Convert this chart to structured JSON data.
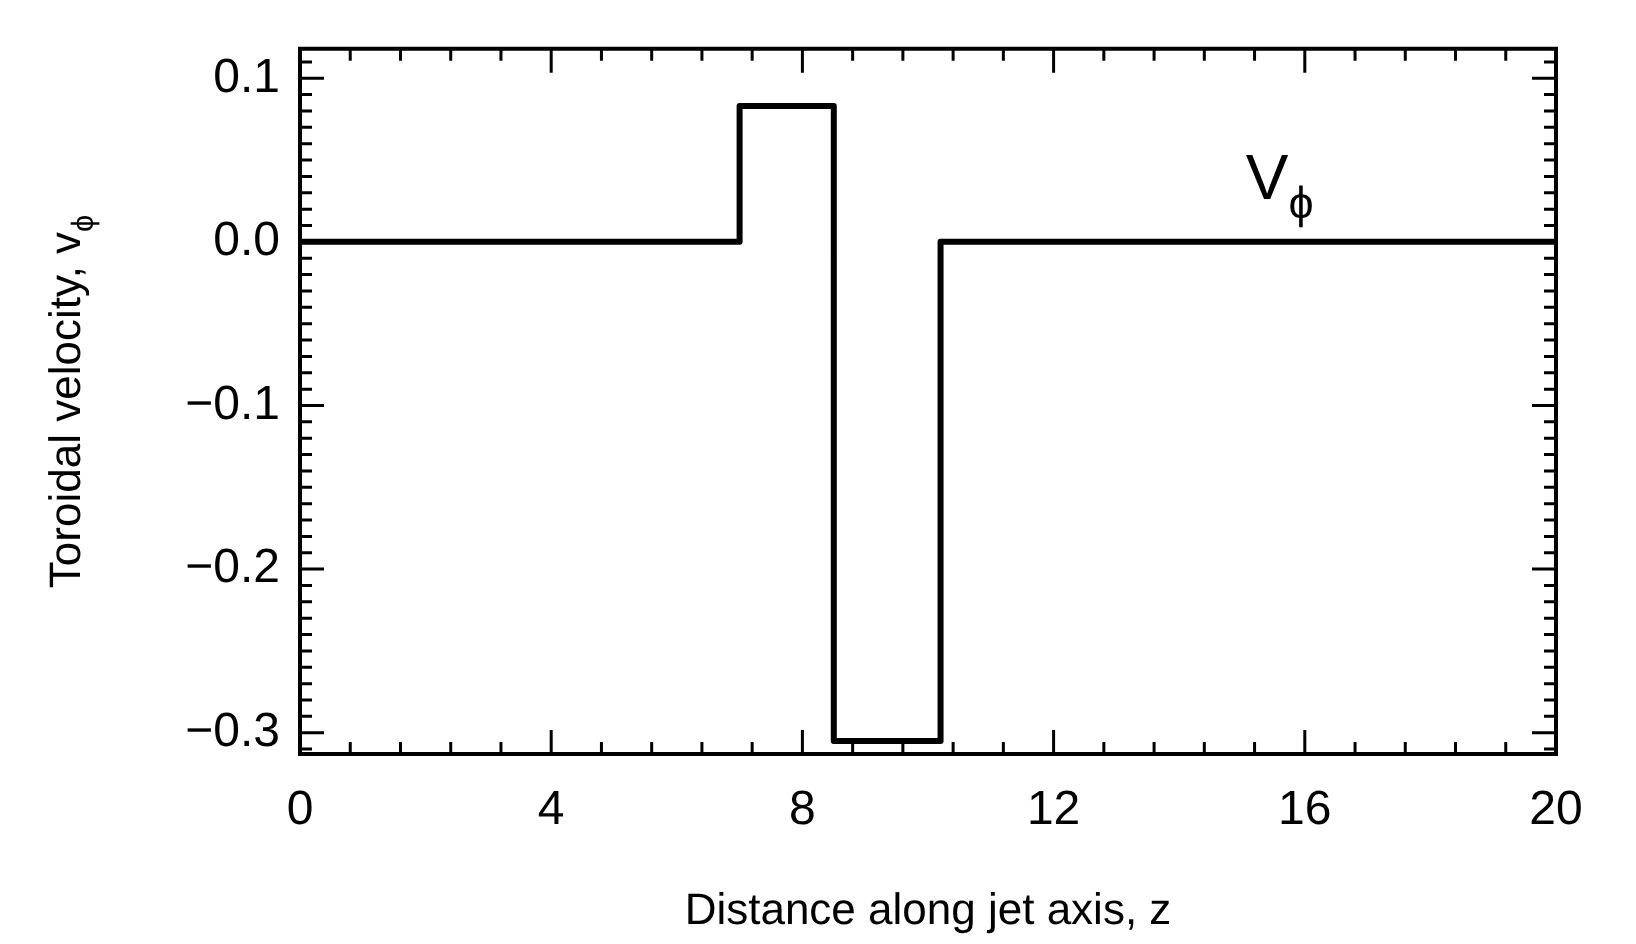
{
  "chart_data": {
    "type": "step",
    "xlabel": "Distance along jet axis, z",
    "ylabel": "Toroidal velocity, v$_{ϕ}$",
    "x": [
      0,
      7,
      8.5,
      10.2,
      20
    ],
    "series": [
      {
        "color": "#000000",
        "values": [
          0,
          0.083,
          -0.305,
          0,
          0
        ]
      }
    ],
    "xlim": [
      0,
      20
    ],
    "ylim": [
      -0.313,
      0.118
    ],
    "xticks": [
      0,
      {
        "value": 0.8,
        "label": null
      },
      {
        "value": 1.6,
        "label": null
      },
      {
        "value": 2.4,
        "label": null
      },
      {
        "value": 3.2,
        "label": null
      },
      4,
      {
        "value": 4.8,
        "label": null
      },
      {
        "value": 5.6,
        "label": null
      },
      {
        "value": 6.4,
        "label": null
      },
      {
        "value": 7.2,
        "label": null
      },
      8,
      {
        "value": 8.8,
        "label": null
      },
      {
        "value": 9.6,
        "label": null
      },
      {
        "value": 10.4,
        "label": null
      },
      {
        "value": 11.2,
        "label": null
      },
      12,
      {
        "value": 12.8,
        "label": null
      },
      {
        "value": 13.6,
        "label": null
      },
      {
        "value": 14.4,
        "label": null
      },
      {
        "value": 15.2,
        "label": null
      },
      16,
      {
        "value": 16.8,
        "label": null
      },
      {
        "value": 17.6,
        "label": null
      },
      {
        "value": 18.4,
        "label": null
      },
      {
        "value": 19.2,
        "label": null
      },
      20
    ],
    "yticks": [
      {
        "value": -0.31,
        "label": null
      },
      {
        "value": -0.3,
        "label": "−0.3"
      },
      {
        "value": -0.29,
        "label": null
      },
      {
        "value": -0.28,
        "label": null
      },
      {
        "value": -0.27,
        "label": null
      },
      {
        "value": -0.26,
        "label": null
      },
      {
        "value": -0.25,
        "label": null
      },
      {
        "value": -0.24,
        "label": null
      },
      {
        "value": -0.23,
        "label": null
      },
      {
        "value": -0.22,
        "label": null
      },
      {
        "value": -0.21,
        "label": null
      },
      {
        "value": -0.2,
        "label": "−0.2"
      },
      {
        "value": -0.19,
        "label": null
      },
      {
        "value": -0.18,
        "label": null
      },
      {
        "value": -0.17,
        "label": null
      },
      {
        "value": -0.16,
        "label": null
      },
      {
        "value": -0.15,
        "label": null
      },
      {
        "value": -0.14,
        "label": null
      },
      {
        "value": -0.13,
        "label": null
      },
      {
        "value": -0.12,
        "label": null
      },
      {
        "value": -0.11,
        "label": null
      },
      {
        "value": -0.1,
        "label": "−0.1"
      },
      {
        "value": -0.09,
        "label": null
      },
      {
        "value": -0.08,
        "label": null
      },
      {
        "value": -0.07,
        "label": null
      },
      {
        "value": -0.06,
        "label": null
      },
      {
        "value": -0.05,
        "label": null
      },
      {
        "value": -0.04,
        "label": null
      },
      {
        "value": -0.03,
        "label": null
      },
      {
        "value": -0.02,
        "label": null
      },
      {
        "value": -0.01,
        "label": null
      },
      {
        "value": 0,
        "label": "0.0"
      },
      {
        "value": 0.01,
        "label": null
      },
      {
        "value": 0.02,
        "label": null
      },
      {
        "value": 0.03,
        "label": null
      },
      {
        "value": 0.04,
        "label": null
      },
      {
        "value": 0.05,
        "label": null
      },
      {
        "value": 0.06,
        "label": null
      },
      {
        "value": 0.07,
        "label": null
      },
      {
        "value": 0.08,
        "label": null
      },
      {
        "value": 0.09,
        "label": null
      },
      0.1,
      {
        "value": 0.11,
        "label": null
      }
    ],
    "annotations": [
      "V$_{ϕ}$"
    ],
    "line_style": "solid",
    "marker": "none",
    "grid": false,
    "legend": false
  }
}
